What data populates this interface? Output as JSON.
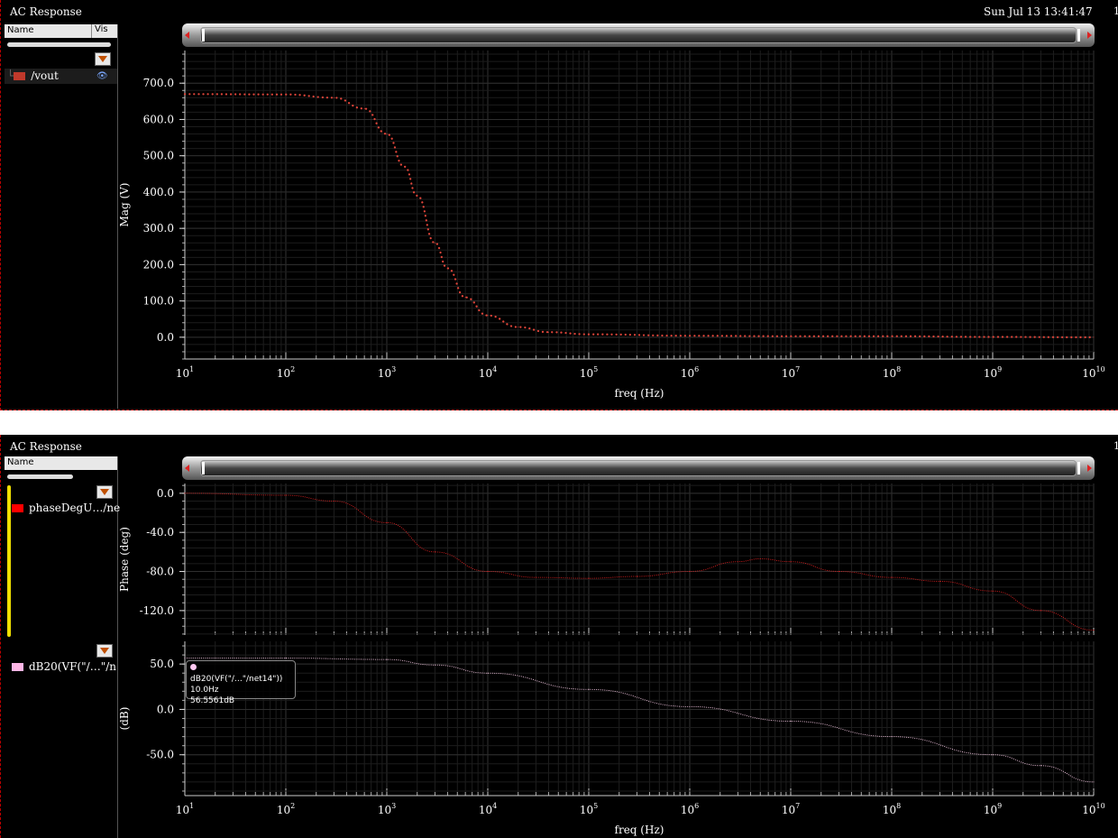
{
  "window": {
    "title_top": "AC Response",
    "date": "Sun Jul 13 13:41:47",
    "corner_char": "1",
    "title_bottom": "AC Response",
    "corner_char_bottom": "1"
  },
  "legend_top": {
    "col_name": "Name",
    "col_vis": "Vis",
    "items": [
      {
        "label": "/vout",
        "color": "#c0392b"
      }
    ]
  },
  "legend_bottom": {
    "col_name": "Name",
    "items": [
      {
        "label": "phaseDegU…/ne",
        "color": "#ff0000"
      },
      {
        "label": "dB20(VF(\"/…\"/n",
        "color": "#ffb6e6"
      }
    ]
  },
  "tooltip": {
    "title": "dB20(VF(\"/…\"/net14\"))",
    "line1": "10.0Hz",
    "line2": "56.5561dB"
  },
  "chart_data": [
    {
      "type": "line",
      "xlabel": "freq (Hz)",
      "ylabel": "Mag (V)",
      "xscale": "log",
      "xlim": [
        10,
        10000000000
      ],
      "ylim": [
        -60,
        790
      ],
      "yticks": [
        "700.0",
        "600.0",
        "500.0",
        "400.0",
        "300.0",
        "200.0",
        "100.0",
        "0.0"
      ],
      "ytick_values": [
        700,
        600,
        500,
        400,
        300,
        200,
        100,
        0
      ],
      "series": [
        {
          "name": "/vout",
          "color": "#e0453a",
          "x": [
            10,
            100,
            300,
            600,
            1000,
            1500,
            2000,
            3000,
            4000,
            6000,
            10000,
            20000,
            40000,
            100000,
            1000000,
            10000000,
            100000000,
            1000000000,
            10000000000
          ],
          "y": [
            670,
            669,
            660,
            630,
            560,
            470,
            390,
            260,
            190,
            110,
            60,
            28,
            14,
            8,
            4,
            3,
            3,
            1,
            0
          ]
        }
      ]
    },
    {
      "type": "line",
      "xlabel": "",
      "ylabel": "Phase (deg)",
      "xscale": "log",
      "xlim": [
        10,
        10000000000
      ],
      "ylim": [
        -145,
        10
      ],
      "yticks": [
        "0.0",
        "-40.0",
        "-80.0",
        "-120.0"
      ],
      "ytick_values": [
        0,
        -40,
        -80,
        -120
      ],
      "series": [
        {
          "name": "phaseDegU…/ne",
          "color": "#e02020",
          "x": [
            10,
            100,
            300,
            1000,
            3000,
            10000,
            30000,
            100000,
            300000,
            1000000,
            3000000,
            5000000,
            10000000,
            30000000,
            100000000,
            300000000,
            1000000000,
            3000000000,
            10000000000
          ],
          "y": [
            0,
            -2,
            -8,
            -30,
            -60,
            -80,
            -86,
            -87,
            -85,
            -80,
            -70,
            -67,
            -70,
            -80,
            -86,
            -90,
            -100,
            -120,
            -140
          ]
        }
      ]
    },
    {
      "type": "line",
      "xlabel": "freq (Hz)",
      "ylabel": "(dB)",
      "xscale": "log",
      "xlim": [
        10,
        10000000000
      ],
      "ylim": [
        -95,
        75
      ],
      "yticks": [
        "50.0",
        "0.0",
        "-50.0"
      ],
      "ytick_values": [
        50,
        0,
        -50
      ],
      "series": [
        {
          "name": "dB20(VF(\"/…\"/n",
          "color": "#ffd0ec",
          "x": [
            10,
            100,
            1000,
            3000,
            10000,
            100000,
            1000000,
            10000000,
            100000000,
            1000000000,
            3000000000,
            10000000000
          ],
          "y": [
            56.56,
            56.5,
            55,
            49,
            40,
            22,
            3,
            -13,
            -30,
            -50,
            -62,
            -80
          ]
        }
      ]
    }
  ],
  "xtick_exponents": [
    "1",
    "2",
    "3",
    "4",
    "5",
    "6",
    "7",
    "8",
    "9",
    "10"
  ]
}
